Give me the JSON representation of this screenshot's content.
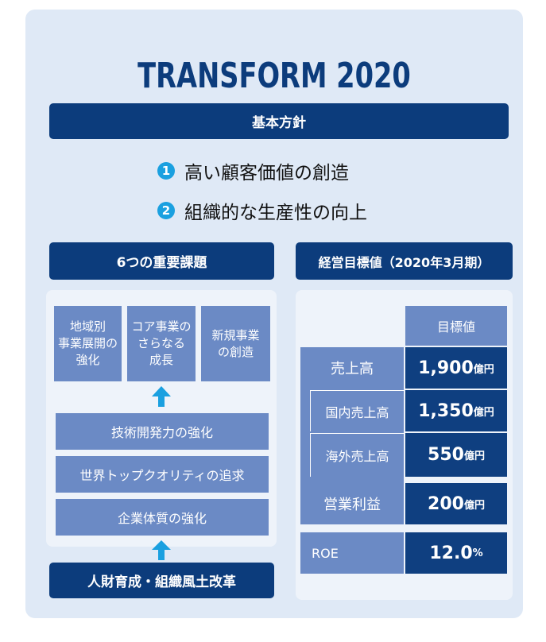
{
  "title": "TRANSFORM 2020",
  "policy": {
    "heading": "基本方針",
    "items": [
      {
        "number": "1",
        "text": "高い顧客価値の創造"
      },
      {
        "number": "2",
        "text": "組織的な生産性の向上"
      }
    ]
  },
  "issues": {
    "heading": "6つの重要課題",
    "top": [
      "地域別\n事業展開の\n強化",
      "コア事業の\nさらなる\n成長",
      "新規事業\nの創造"
    ],
    "bars": [
      "技術開発力の強化",
      "世界トップクオリティの追求",
      "企業体質の強化"
    ],
    "base": "人財育成・組織風土改革"
  },
  "targets": {
    "heading": "経営目標値（2020年3月期）",
    "column": "目標値",
    "rows": [
      {
        "label": "売上高",
        "value": "1,900",
        "unit": "億円"
      },
      {
        "label": "国内売上高",
        "value": "1,350",
        "unit": "億円"
      },
      {
        "label": "海外売上高",
        "value": "550",
        "unit": "億円"
      },
      {
        "label": "営業利益",
        "value": "200",
        "unit": "億円"
      },
      {
        "label": "ROE",
        "value": "12.0",
        "unit": "%"
      }
    ]
  }
}
